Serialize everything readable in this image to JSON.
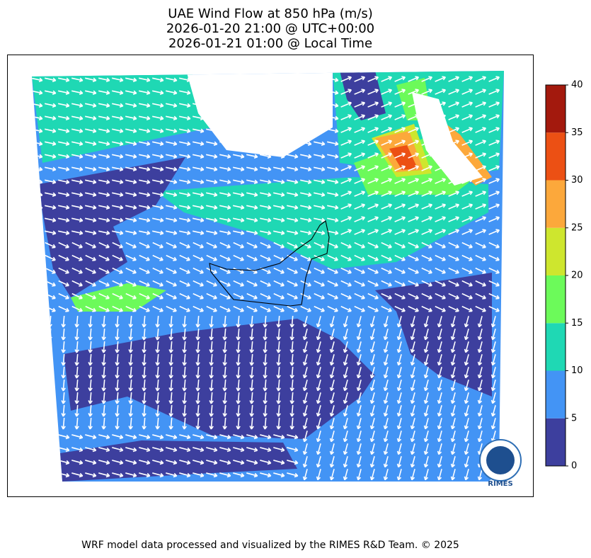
{
  "chart_data": {
    "type": "map",
    "title_lines": [
      "UAE Wind Flow at 850 hPa (m/s)",
      "2026-01-20 21:00 @ UTC+00:00",
      "2026-01-21 01:00 @ Local Time"
    ],
    "colorbar": {
      "ticks": [
        0,
        5,
        10,
        15,
        20,
        25,
        30,
        35,
        40
      ],
      "colors": [
        "#3d3f9e",
        "#4394f5",
        "#1fd8b4",
        "#6cfa5a",
        "#cee62e",
        "#fca83b",
        "#ec5014",
        "#a3190d"
      ]
    },
    "logo_text": "RIMES",
    "footer": "WRF model data processed and visualized by the RIMES R&D Team. © 2025"
  }
}
